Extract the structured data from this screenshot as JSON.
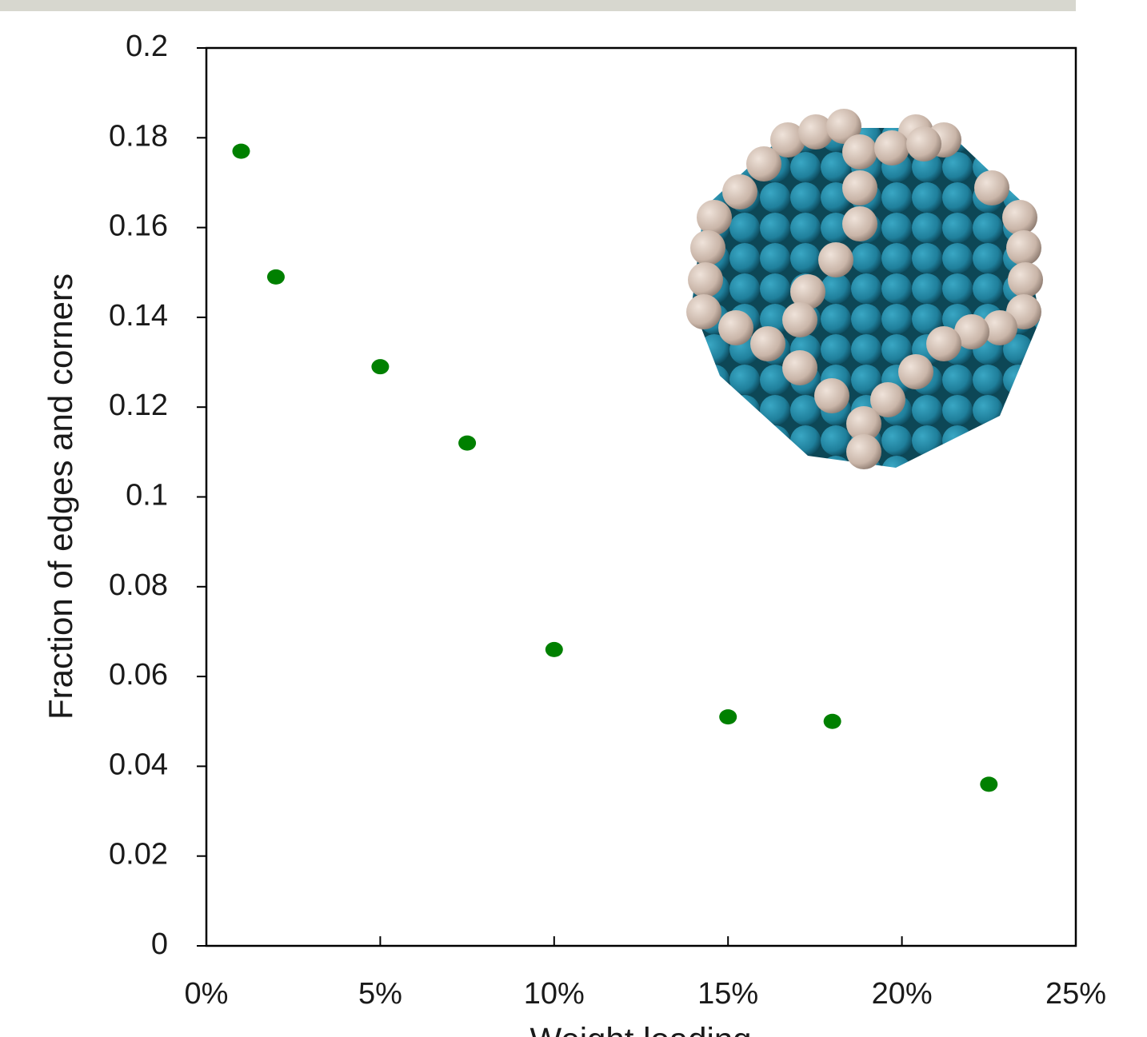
{
  "chart_data": {
    "type": "scatter",
    "x_label": "Weight loading",
    "y_label": "Fraction of edges and corners",
    "color": "#008000",
    "x": [
      1,
      2,
      5,
      7.5,
      10,
      15,
      18,
      22.5
    ],
    "values": [
      0.177,
      0.149,
      0.129,
      0.112,
      0.066,
      0.051,
      0.05,
      0.036
    ],
    "xlim": [
      0,
      25
    ],
    "ylim": [
      0,
      0.2
    ],
    "xticks": [
      {
        "value": 0,
        "label": "0%"
      },
      {
        "value": 5,
        "label": "5%"
      },
      {
        "value": 10,
        "label": "10%"
      },
      {
        "value": 15,
        "label": "15%"
      },
      {
        "value": 20,
        "label": "20%"
      },
      {
        "value": 25,
        "label": "25%"
      }
    ],
    "yticks": [
      0,
      0.02,
      0.04,
      0.06,
      0.08,
      0.1,
      0.12,
      0.14,
      0.16,
      0.18,
      0.2
    ]
  }
}
